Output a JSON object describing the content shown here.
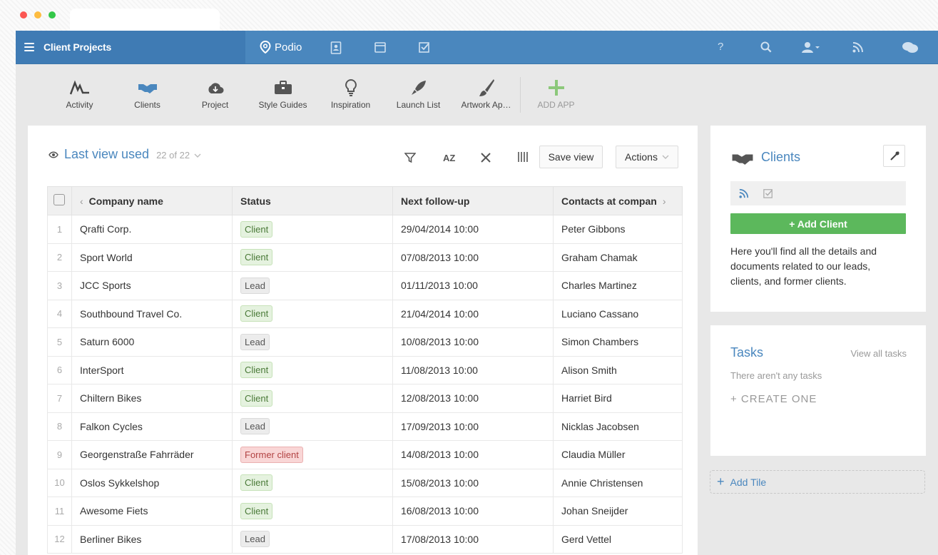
{
  "topbar": {
    "workspace_title": "Client Projects",
    "brand": "Podio"
  },
  "apps": [
    {
      "label": "Activity",
      "icon": "activity-icon"
    },
    {
      "label": "Clients",
      "icon": "handshake-icon"
    },
    {
      "label": "Project",
      "icon": "cloud-icon"
    },
    {
      "label": "Style Guides",
      "icon": "briefcase-icon"
    },
    {
      "label": "Inspiration",
      "icon": "lightbulb-icon"
    },
    {
      "label": "Launch List",
      "icon": "rocket-icon"
    },
    {
      "label": "Artwork Ap…",
      "icon": "brush-icon"
    },
    {
      "label": "ADD APP",
      "icon": "plus-icon"
    }
  ],
  "view": {
    "title": "Last view used",
    "count": "22 of 22",
    "az_label": "AZ",
    "save_view": "Save view",
    "actions": "Actions"
  },
  "table": {
    "columns": [
      "Company name",
      "Status",
      "Next follow-up",
      "Contacts at compan"
    ],
    "rows": [
      {
        "n": "1",
        "company": "Qrafti Corp.",
        "status": "Client",
        "followup": "29/04/2014 10:00",
        "contact": "Peter Gibbons"
      },
      {
        "n": "2",
        "company": "Sport World",
        "status": "Client",
        "followup": "07/08/2013 10:00",
        "contact": "Graham Chamak"
      },
      {
        "n": "3",
        "company": "JCC Sports",
        "status": "Lead",
        "followup": "01/11/2013 10:00",
        "contact": "Charles Martinez"
      },
      {
        "n": "4",
        "company": "Southbound Travel Co.",
        "status": "Client",
        "followup": "21/04/2014 10:00",
        "contact": "Luciano Cassano"
      },
      {
        "n": "5",
        "company": "Saturn 6000",
        "status": "Lead",
        "followup": "10/08/2013 10:00",
        "contact": "Simon Chambers"
      },
      {
        "n": "6",
        "company": "InterSport",
        "status": "Client",
        "followup": "11/08/2013 10:00",
        "contact": "Alison Smith"
      },
      {
        "n": "7",
        "company": "Chiltern Bikes",
        "status": "Client",
        "followup": "12/08/2013 10:00",
        "contact": "Harriet Bird"
      },
      {
        "n": "8",
        "company": "Falkon Cycles",
        "status": "Lead",
        "followup": "17/09/2013 10:00",
        "contact": "Nicklas Jacobsen"
      },
      {
        "n": "9",
        "company": "Georgenstraße Fahrräder",
        "status": "Former client",
        "followup": "14/08/2013 10:00",
        "contact": "Claudia Müller"
      },
      {
        "n": "10",
        "company": "Oslos Sykkelshop",
        "status": "Client",
        "followup": "15/08/2013 10:00",
        "contact": "Annie Christensen"
      },
      {
        "n": "11",
        "company": "Awesome Fiets",
        "status": "Client",
        "followup": "16/08/2013 10:00",
        "contact": "Johan Sneijder"
      },
      {
        "n": "12",
        "company": "Berliner Bikes",
        "status": "Lead",
        "followup": "17/08/2013 10:00",
        "contact": "Gerd Vettel"
      }
    ]
  },
  "clients_panel": {
    "title": "Clients",
    "add_button": "+ Add Client",
    "description": "Here you'll find all the details and documents related to our leads, clients, and former clients."
  },
  "tasks_panel": {
    "title": "Tasks",
    "view_all": "View all tasks",
    "empty": "There aren't any tasks",
    "create": "+ CREATE ONE"
  },
  "add_tile": "Add Tile",
  "colors": {
    "topbar": "#4a87be",
    "accent": "#4a87be",
    "success": "#5cb85c"
  }
}
